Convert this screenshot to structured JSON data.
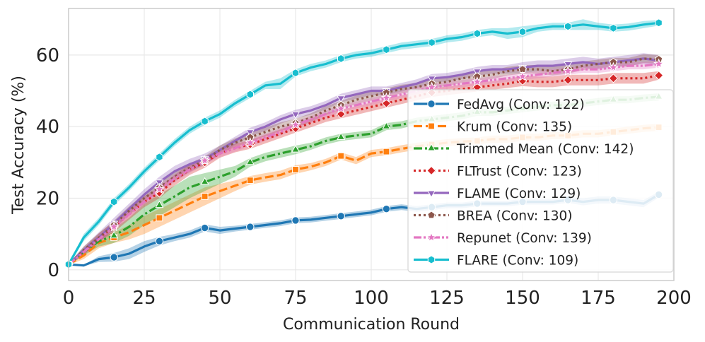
{
  "chart_data": {
    "type": "line",
    "title": "",
    "xlabel": "Communication Round",
    "ylabel": "Test Accuracy (%)",
    "xlim": [
      0,
      200
    ],
    "ylim": [
      -3,
      73
    ],
    "xticks": [
      0,
      25,
      50,
      75,
      100,
      125,
      150,
      175,
      200
    ],
    "yticks": [
      0,
      20,
      40,
      60
    ],
    "grid": true,
    "legend_position": "center-right",
    "series": [
      {
        "name": "FedAvg (Conv: 122)",
        "color": "#1f77b4",
        "dash": "solid",
        "marker": "circle",
        "x": [
          0,
          5,
          10,
          15,
          20,
          25,
          30,
          35,
          40,
          45,
          50,
          55,
          60,
          65,
          70,
          75,
          80,
          85,
          90,
          95,
          100,
          105,
          110,
          115,
          120,
          125,
          130,
          135,
          140,
          145,
          150,
          155,
          160,
          165,
          170,
          175,
          180,
          185,
          190,
          195
        ],
        "y": [
          1.5,
          1.2,
          3.0,
          3.5,
          4.5,
          6.5,
          8.0,
          9.0,
          10.0,
          11.7,
          11.0,
          11.5,
          12.0,
          12.5,
          13.0,
          13.8,
          14.0,
          14.5,
          15.0,
          15.5,
          16.0,
          17.0,
          17.5,
          17.0,
          17.5,
          18.0,
          18.0,
          18.5,
          18.5,
          18.5,
          19.0,
          19.0,
          19.0,
          19.5,
          19.0,
          19.5,
          19.5,
          19.0,
          18.5,
          21.0
        ],
        "band": [
          0.2,
          0.2,
          0.8,
          1.2,
          1.5,
          1.5,
          1.2,
          1.0,
          1.0,
          1.0,
          1.0,
          0.8,
          0.8,
          0.8,
          0.8,
          0.8,
          0.8,
          0.8,
          0.8,
          0.8,
          0.8,
          0.8,
          0.8,
          0.8,
          0.8,
          0.8,
          0.8,
          0.8,
          0.8,
          0.8,
          0.8,
          0.8,
          0.8,
          0.8,
          1.0,
          1.0,
          1.0,
          1.0,
          1.0,
          0.8
        ],
        "marker_every": 3
      },
      {
        "name": "Krum (Conv: 135)",
        "color": "#ff7f0e",
        "dash": "dashed",
        "marker": "square",
        "x": [
          0,
          5,
          10,
          15,
          20,
          25,
          30,
          35,
          40,
          45,
          50,
          55,
          60,
          65,
          70,
          75,
          80,
          85,
          90,
          95,
          100,
          105,
          110,
          115,
          120,
          125,
          130,
          135,
          140,
          145,
          150,
          155,
          160,
          165,
          170,
          175,
          180,
          185,
          190,
          195
        ],
        "y": [
          1.5,
          4.0,
          7.5,
          9.0,
          10.5,
          12.5,
          14.5,
          16.5,
          18.5,
          20.5,
          22.0,
          23.5,
          25.0,
          25.8,
          26.5,
          28.0,
          28.8,
          30.0,
          31.8,
          30.5,
          32.5,
          33.0,
          33.8,
          34.5,
          35.0,
          35.5,
          35.8,
          36.0,
          36.5,
          36.5,
          37.0,
          37.0,
          37.5,
          37.5,
          38.0,
          38.0,
          38.5,
          39.0,
          39.5,
          39.8
        ],
        "band": [
          0.2,
          1.0,
          1.5,
          1.5,
          2.0,
          2.5,
          2.5,
          2.5,
          2.5,
          2.5,
          2.0,
          1.5,
          1.2,
          1.2,
          1.2,
          1.2,
          1.0,
          1.0,
          1.0,
          1.0,
          1.0,
          1.0,
          1.0,
          1.0,
          1.0,
          1.0,
          1.0,
          1.0,
          1.0,
          1.0,
          1.0,
          1.0,
          1.0,
          1.0,
          1.0,
          1.0,
          1.0,
          1.0,
          1.0,
          1.0
        ],
        "marker_every": 3
      },
      {
        "name": "Trimmed Mean (Conv: 142)",
        "color": "#2ca02c",
        "dash": "dashdot",
        "marker": "triangle",
        "x": [
          0,
          5,
          10,
          15,
          20,
          25,
          30,
          35,
          40,
          45,
          50,
          55,
          60,
          65,
          70,
          75,
          80,
          85,
          90,
          95,
          100,
          105,
          110,
          115,
          120,
          125,
          130,
          135,
          140,
          145,
          150,
          155,
          160,
          165,
          170,
          175,
          180,
          185,
          190,
          195
        ],
        "y": [
          1.5,
          5.0,
          8.0,
          9.5,
          12.0,
          15.5,
          18.0,
          20.5,
          23.0,
          24.5,
          26.0,
          27.5,
          30.0,
          31.5,
          32.5,
          33.5,
          34.5,
          36.0,
          37.0,
          37.5,
          38.0,
          40.0,
          40.5,
          41.5,
          42.0,
          42.5,
          43.0,
          44.0,
          44.0,
          44.5,
          45.0,
          45.5,
          46.0,
          46.0,
          46.5,
          47.0,
          47.5,
          47.5,
          48.0,
          48.3
        ],
        "band": [
          0.2,
          1.0,
          1.5,
          2.0,
          2.5,
          3.0,
          3.0,
          3.0,
          3.0,
          2.5,
          2.0,
          1.5,
          1.2,
          1.2,
          1.2,
          1.2,
          1.0,
          1.0,
          1.0,
          1.0,
          1.0,
          1.0,
          1.0,
          1.0,
          1.0,
          1.0,
          1.0,
          1.0,
          1.0,
          1.0,
          1.0,
          1.0,
          1.0,
          1.0,
          1.0,
          1.0,
          1.0,
          1.0,
          1.0,
          1.0
        ],
        "marker_every": 3
      },
      {
        "name": "FLTrust (Conv: 123)",
        "color": "#d62728",
        "dash": "dotted",
        "marker": "diamond",
        "x": [
          0,
          5,
          10,
          15,
          20,
          25,
          30,
          35,
          40,
          45,
          50,
          55,
          60,
          65,
          70,
          75,
          80,
          85,
          90,
          95,
          100,
          105,
          110,
          115,
          120,
          125,
          130,
          135,
          140,
          145,
          150,
          155,
          160,
          165,
          170,
          175,
          180,
          185,
          190,
          195
        ],
        "y": [
          1.5,
          5.0,
          9.0,
          12.0,
          15.5,
          19.0,
          21.5,
          25.0,
          28.0,
          30.0,
          32.5,
          34.0,
          35.0,
          36.5,
          38.0,
          39.5,
          41.0,
          42.5,
          43.5,
          44.5,
          45.5,
          46.5,
          47.5,
          48.5,
          49.5,
          50.0,
          50.5,
          51.0,
          51.5,
          52.0,
          52.8,
          52.5,
          52.5,
          53.0,
          53.0,
          53.0,
          53.5,
          53.5,
          53.5,
          54.3
        ],
        "band": [
          0.2,
          1.0,
          1.2,
          1.5,
          1.5,
          1.5,
          1.5,
          1.5,
          1.5,
          1.5,
          1.2,
          1.2,
          1.2,
          1.2,
          1.2,
          1.2,
          1.2,
          1.2,
          1.2,
          1.2,
          1.2,
          1.2,
          1.2,
          1.2,
          1.2,
          1.2,
          1.2,
          1.2,
          1.2,
          1.2,
          1.5,
          1.5,
          1.5,
          1.5,
          1.5,
          1.5,
          1.5,
          1.5,
          1.5,
          1.2
        ],
        "marker_every": 3
      },
      {
        "name": "FLAME (Conv: 129)",
        "color": "#9467bd",
        "dash": "solid",
        "marker": "triangle-down",
        "x": [
          0,
          5,
          10,
          15,
          20,
          25,
          30,
          35,
          40,
          45,
          50,
          55,
          60,
          65,
          70,
          75,
          80,
          85,
          90,
          95,
          100,
          105,
          110,
          115,
          120,
          125,
          130,
          135,
          140,
          145,
          150,
          155,
          160,
          165,
          170,
          175,
          180,
          185,
          190,
          195
        ],
        "y": [
          1.5,
          5.5,
          9.0,
          13.0,
          17.0,
          21.0,
          24.5,
          27.5,
          29.5,
          31.0,
          33.5,
          36.0,
          38.5,
          40.0,
          42.0,
          43.5,
          44.5,
          46.0,
          48.0,
          49.0,
          50.0,
          50.0,
          51.0,
          52.0,
          53.5,
          53.8,
          54.5,
          55.5,
          56.0,
          56.0,
          56.5,
          57.0,
          57.0,
          57.5,
          58.0,
          57.5,
          58.0,
          58.5,
          59.0,
          58.5
        ],
        "band": [
          0.2,
          1.0,
          1.5,
          1.5,
          1.5,
          1.5,
          1.5,
          1.5,
          1.5,
          1.5,
          1.2,
          1.2,
          1.2,
          1.2,
          1.2,
          1.2,
          1.2,
          1.2,
          1.2,
          1.2,
          1.2,
          1.2,
          1.2,
          1.2,
          1.2,
          1.2,
          1.2,
          1.2,
          1.2,
          1.2,
          1.5,
          1.5,
          1.5,
          1.5,
          1.5,
          1.5,
          1.5,
          1.5,
          1.5,
          1.5
        ],
        "marker_every": 3
      },
      {
        "name": "BREA (Conv: 130)",
        "color": "#8c564b",
        "dash": "dotted",
        "marker": "pentagon",
        "x": [
          0,
          5,
          10,
          15,
          20,
          25,
          30,
          35,
          40,
          45,
          50,
          55,
          60,
          65,
          70,
          75,
          80,
          85,
          90,
          95,
          100,
          105,
          110,
          115,
          120,
          125,
          130,
          135,
          140,
          145,
          150,
          155,
          160,
          165,
          170,
          175,
          180,
          185,
          190,
          195
        ],
        "y": [
          1.5,
          5.5,
          9.0,
          12.5,
          16.5,
          20.0,
          23.0,
          26.0,
          28.5,
          30.5,
          33.5,
          35.5,
          37.0,
          38.5,
          40.0,
          41.0,
          42.5,
          44.5,
          46.0,
          47.5,
          48.5,
          49.5,
          50.5,
          51.0,
          52.0,
          52.5,
          53.5,
          54.0,
          54.5,
          55.5,
          56.0,
          56.0,
          55.5,
          56.0,
          57.0,
          57.5,
          58.0,
          58.0,
          59.0,
          58.8
        ],
        "band": [
          0.2,
          1.0,
          1.2,
          1.2,
          1.2,
          1.2,
          1.2,
          1.2,
          1.2,
          1.2,
          1.2,
          1.2,
          1.2,
          1.2,
          1.2,
          1.2,
          1.2,
          1.2,
          1.2,
          1.2,
          1.2,
          1.2,
          1.2,
          1.2,
          1.2,
          1.2,
          1.2,
          1.2,
          1.2,
          1.2,
          1.2,
          1.2,
          1.2,
          1.2,
          1.2,
          1.2,
          1.2,
          1.2,
          1.2,
          1.2
        ],
        "marker_every": 3
      },
      {
        "name": "Repunet (Conv: 139)",
        "color": "#e377c2",
        "dash": "dashdotdot",
        "marker": "star",
        "x": [
          0,
          5,
          10,
          15,
          20,
          25,
          30,
          35,
          40,
          45,
          50,
          55,
          60,
          65,
          70,
          75,
          80,
          85,
          90,
          95,
          100,
          105,
          110,
          115,
          120,
          125,
          130,
          135,
          140,
          145,
          150,
          155,
          160,
          165,
          170,
          175,
          180,
          185,
          190,
          195
        ],
        "y": [
          1.5,
          5.0,
          8.5,
          12.0,
          15.5,
          19.0,
          22.5,
          25.5,
          28.0,
          30.5,
          32.5,
          34.0,
          35.5,
          37.0,
          38.5,
          40.5,
          42.0,
          43.5,
          45.0,
          46.0,
          47.0,
          48.0,
          49.0,
          50.0,
          51.0,
          51.5,
          52.0,
          52.5,
          53.0,
          53.5,
          54.0,
          54.5,
          55.0,
          55.5,
          56.0,
          56.0,
          56.5,
          57.0,
          57.0,
          57.5
        ],
        "band": [
          0.2,
          0.8,
          1.0,
          1.0,
          1.0,
          1.0,
          1.0,
          1.0,
          1.0,
          1.0,
          1.0,
          1.0,
          1.0,
          1.0,
          1.0,
          1.0,
          1.0,
          1.0,
          1.0,
          1.0,
          1.0,
          1.0,
          1.0,
          1.0,
          1.0,
          1.0,
          1.0,
          1.0,
          1.0,
          1.0,
          1.0,
          1.0,
          1.0,
          1.0,
          1.0,
          1.0,
          1.0,
          1.0,
          1.0,
          1.0
        ],
        "marker_every": 3
      },
      {
        "name": "FLARE (Conv: 109)",
        "color": "#17becf",
        "dash": "solid",
        "marker": "hexagon",
        "x": [
          0,
          5,
          10,
          15,
          20,
          25,
          30,
          35,
          40,
          45,
          50,
          55,
          60,
          65,
          70,
          75,
          80,
          85,
          90,
          95,
          100,
          105,
          110,
          115,
          120,
          125,
          130,
          135,
          140,
          145,
          150,
          155,
          160,
          165,
          170,
          175,
          180,
          185,
          190,
          195
        ],
        "y": [
          1.5,
          9.0,
          13.5,
          19.0,
          23.0,
          27.5,
          31.5,
          35.5,
          39.0,
          41.5,
          43.5,
          46.5,
          49.0,
          51.5,
          52.0,
          55.0,
          56.5,
          57.5,
          59.0,
          60.0,
          60.5,
          61.5,
          62.5,
          63.0,
          63.5,
          64.5,
          65.0,
          66.0,
          66.5,
          66.0,
          66.5,
          67.5,
          68.0,
          68.0,
          68.5,
          68.0,
          67.5,
          67.8,
          68.5,
          69.0
        ],
        "band": [
          0.2,
          1.0,
          1.0,
          1.0,
          1.0,
          1.0,
          1.0,
          1.0,
          1.0,
          1.0,
          1.0,
          1.0,
          1.0,
          1.0,
          1.5,
          1.0,
          1.0,
          1.0,
          1.0,
          1.0,
          1.0,
          1.0,
          1.0,
          1.0,
          1.0,
          1.0,
          1.0,
          1.0,
          1.0,
          1.5,
          1.5,
          1.0,
          1.0,
          1.0,
          1.5,
          1.0,
          1.0,
          1.0,
          1.0,
          0.8
        ],
        "marker_every": 3
      }
    ]
  }
}
